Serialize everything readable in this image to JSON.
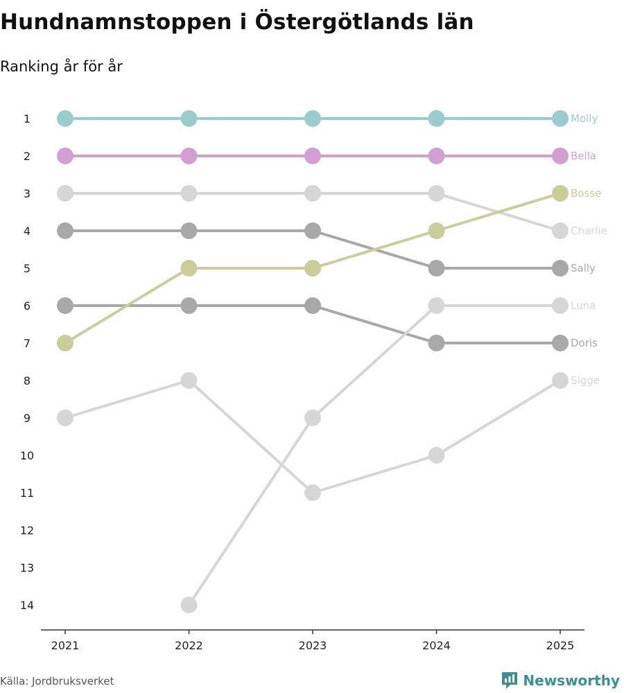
{
  "title": "Hundnamnstoppen i Östergötlands län",
  "subtitle": "Ranking år för år",
  "source": "Källa: Jordbruksverket",
  "brand": {
    "name": "Newsworthy",
    "icon": "newsworthy-logo-icon",
    "color": "#3d8f8c"
  },
  "chart_data": {
    "type": "line",
    "title": "Hundnamnstoppen i Östergötlands län",
    "subtitle": "Ranking år för år",
    "xlabel": "",
    "ylabel": "",
    "x": [
      "2021",
      "2022",
      "2023",
      "2024",
      "2025"
    ],
    "y_ticks": [
      "1",
      "2",
      "3",
      "4",
      "5",
      "6",
      "7",
      "8",
      "9",
      "10",
      "11",
      "12",
      "13",
      "14"
    ],
    "ylim": [
      1,
      14
    ],
    "y_inverted": true,
    "grid": false,
    "series": [
      {
        "name": "Molly",
        "color": "#99cccb",
        "values": [
          1,
          1,
          1,
          1,
          1
        ]
      },
      {
        "name": "Bella",
        "color": "#d19fd2",
        "values": [
          2,
          2,
          2,
          2,
          2
        ]
      },
      {
        "name": "Bosse",
        "color": "#cacd9a",
        "values": [
          7,
          5,
          5,
          4,
          3
        ]
      },
      {
        "name": "Charlie",
        "color": "#d6d6d6",
        "values": [
          3,
          3,
          3,
          3,
          4
        ]
      },
      {
        "name": "Sally",
        "color": "#a8a8a8",
        "values": [
          4,
          4,
          4,
          5,
          5
        ]
      },
      {
        "name": "Luna",
        "color": "#d6d6d6",
        "values": [
          null,
          14,
          9,
          6,
          6
        ]
      },
      {
        "name": "Doris",
        "color": "#a8a8a8",
        "values": [
          6,
          6,
          6,
          7,
          7
        ]
      },
      {
        "name": "Sigge",
        "color": "#d6d6d6",
        "values": [
          9,
          8,
          11,
          10,
          8
        ]
      }
    ]
  }
}
